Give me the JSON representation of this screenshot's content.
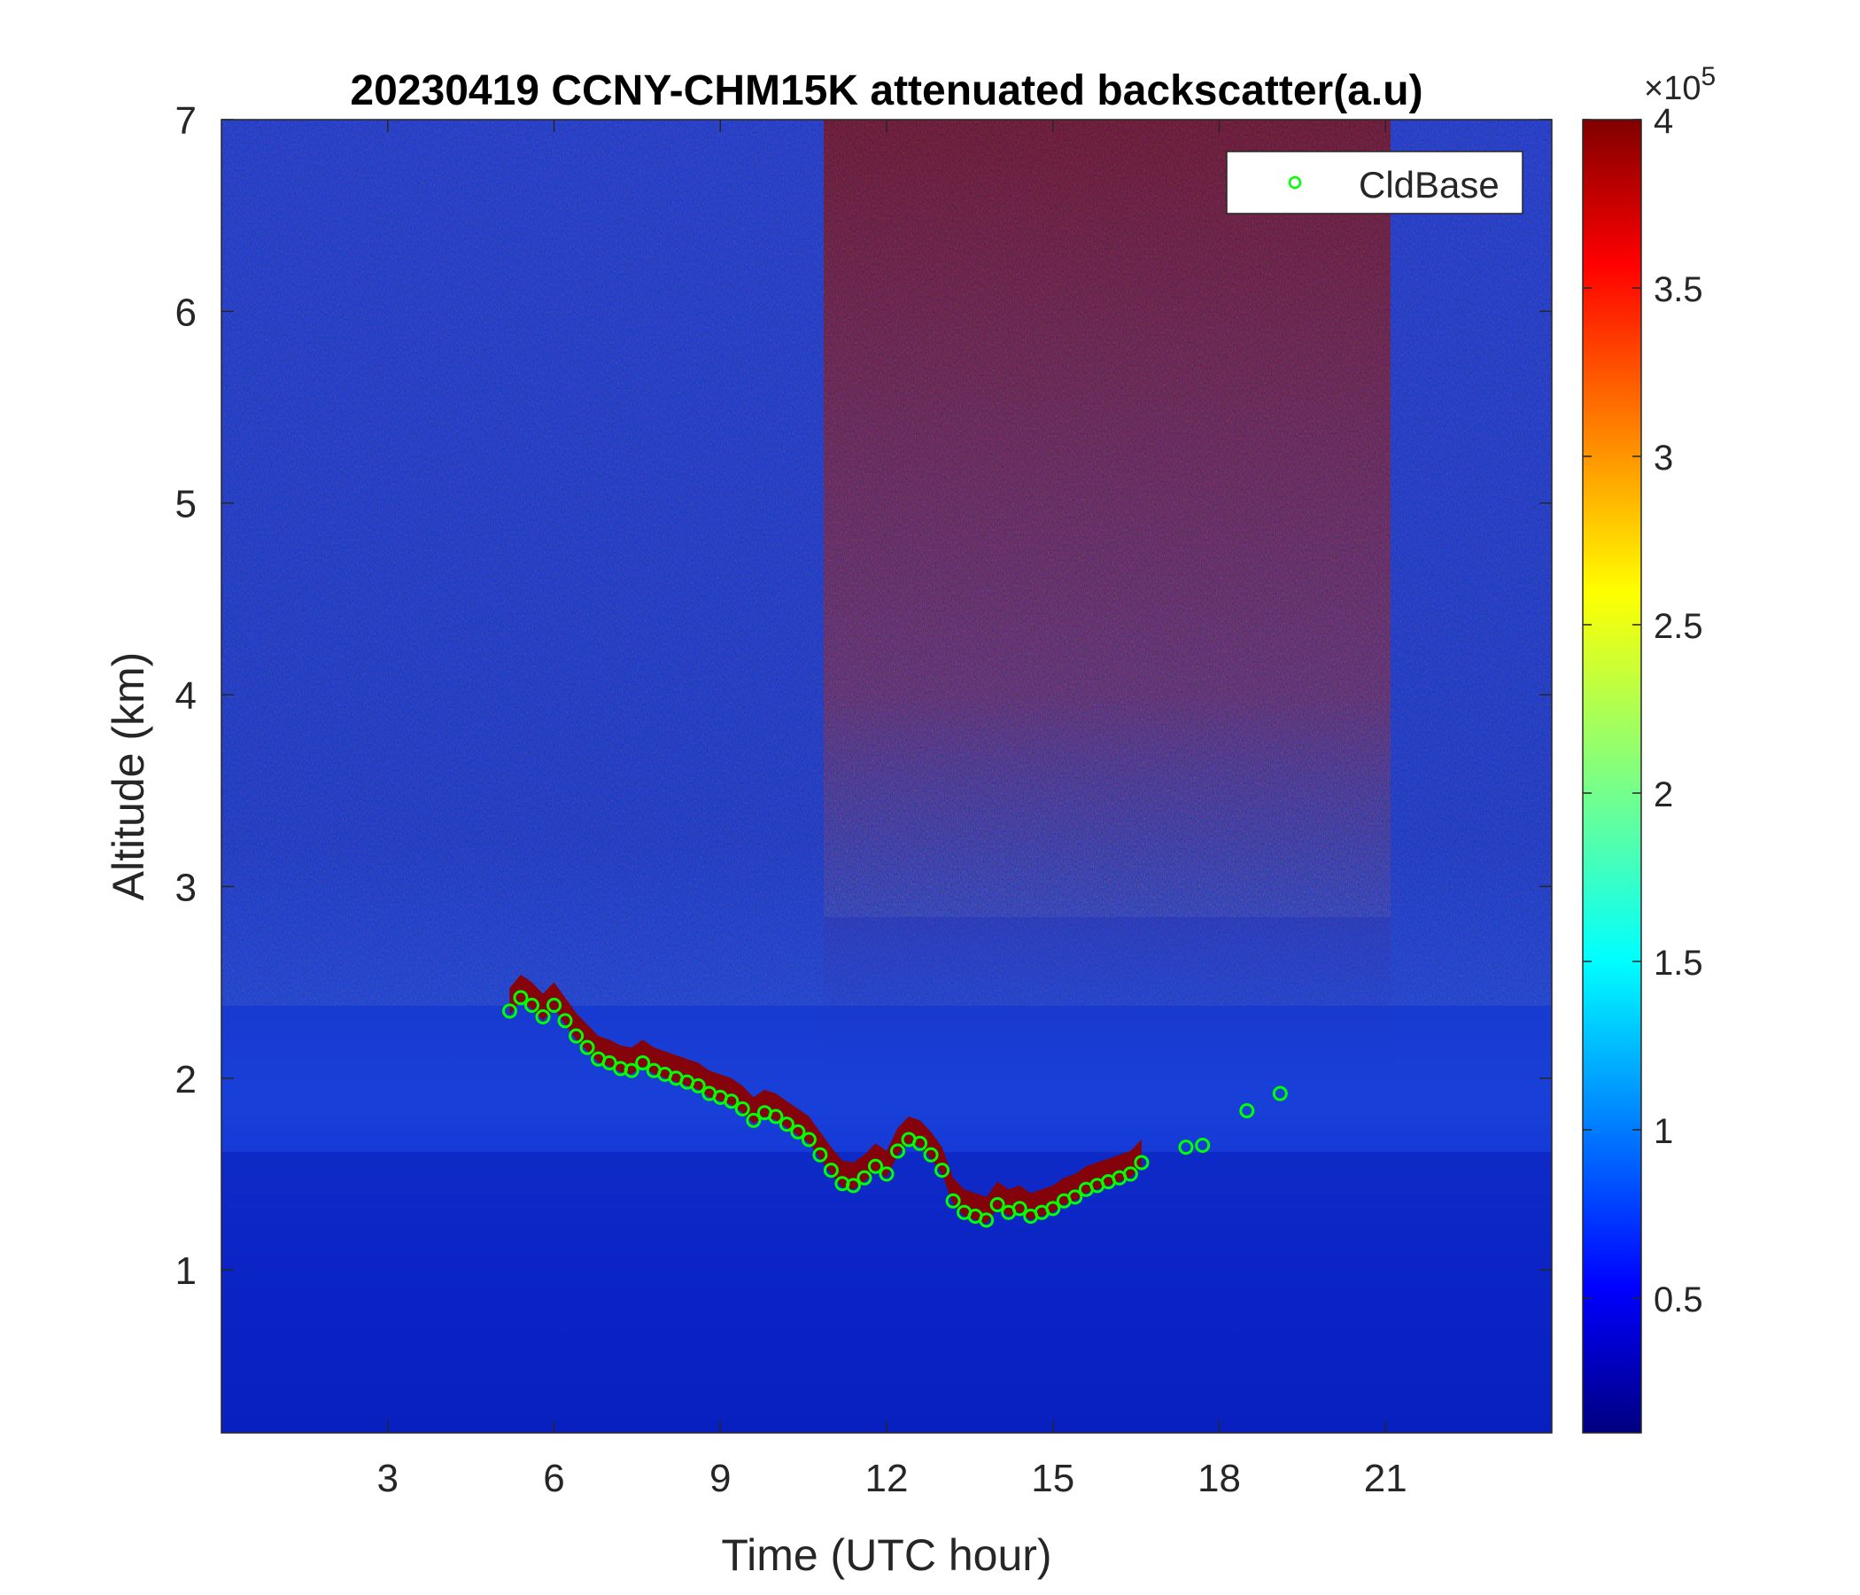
{
  "chart_data": {
    "type": "heatmap",
    "title": "20230419 CCNY-CHM15K attenuated backscatter(a.u)",
    "xlabel": "Time (UTC hour)",
    "ylabel": "Altitude (km)",
    "xlim": [
      0,
      24
    ],
    "ylim": [
      0.15,
      7
    ],
    "x_ticks": [
      3,
      6,
      9,
      12,
      15,
      18,
      21
    ],
    "y_ticks": [
      1,
      2,
      3,
      4,
      5,
      6,
      7
    ],
    "colorbar": {
      "colormap": "jet",
      "range": [
        0.1,
        4.0
      ],
      "ticks": [
        0.5,
        1,
        1.5,
        2,
        2.5,
        3,
        3.5,
        4
      ],
      "exponent_prefix": "×10",
      "exponent_power": "5"
    },
    "legend": {
      "position": "top-right",
      "entries": [
        "CldBase"
      ]
    },
    "series": [
      {
        "name": "CldBase",
        "marker": "circle",
        "color": "#00ff00",
        "x": [
          5.2,
          5.4,
          5.6,
          5.8,
          6.0,
          6.2,
          6.4,
          6.6,
          6.8,
          7.0,
          7.2,
          7.4,
          7.6,
          7.8,
          8.0,
          8.2,
          8.4,
          8.6,
          8.8,
          9.0,
          9.2,
          9.4,
          9.6,
          9.8,
          10.0,
          10.2,
          10.4,
          10.6,
          10.8,
          11.0,
          11.2,
          11.4,
          11.6,
          11.8,
          12.0,
          12.2,
          12.4,
          12.6,
          12.8,
          13.0,
          13.2,
          13.4,
          13.6,
          13.8,
          14.0,
          14.2,
          14.4,
          14.6,
          14.8,
          15.0,
          15.2,
          15.4,
          15.6,
          15.8,
          16.0,
          16.2,
          16.4,
          16.6,
          17.4,
          17.7,
          18.5,
          19.1
        ],
        "y": [
          2.35,
          2.42,
          2.38,
          2.32,
          2.38,
          2.3,
          2.22,
          2.16,
          2.1,
          2.08,
          2.05,
          2.04,
          2.08,
          2.04,
          2.02,
          2.0,
          1.98,
          1.96,
          1.92,
          1.9,
          1.88,
          1.84,
          1.78,
          1.82,
          1.8,
          1.76,
          1.72,
          1.68,
          1.6,
          1.52,
          1.45,
          1.44,
          1.48,
          1.54,
          1.5,
          1.62,
          1.68,
          1.66,
          1.6,
          1.52,
          1.36,
          1.3,
          1.28,
          1.26,
          1.34,
          1.3,
          1.32,
          1.28,
          1.3,
          1.32,
          1.36,
          1.38,
          1.42,
          1.44,
          1.46,
          1.48,
          1.5,
          1.56,
          1.64,
          1.65,
          1.83,
          1.92
        ]
      }
    ]
  }
}
